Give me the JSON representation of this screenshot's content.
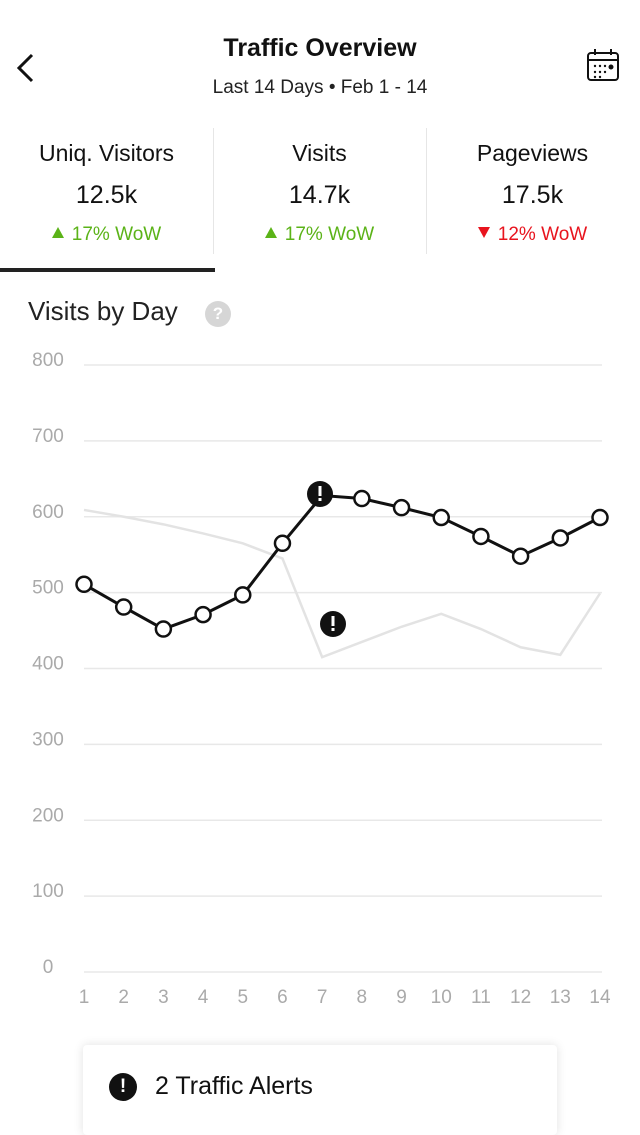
{
  "header": {
    "title": "Traffic Overview",
    "range": "Last 14 Days",
    "separator": "•",
    "dates": "Feb 1 - 14"
  },
  "metrics": [
    {
      "label": "Uniq. Visitors",
      "value": "12.5k",
      "change": "17% WoW",
      "direction": "up"
    },
    {
      "label": "Visits",
      "value": "14.7k",
      "change": "17% WoW",
      "direction": "up"
    },
    {
      "label": "Pageviews",
      "value": "17.5k",
      "change": "12% WoW",
      "direction": "down"
    }
  ],
  "section_title": "Visits by Day",
  "help_icon": "?",
  "chart_data": {
    "type": "line",
    "x": [
      1,
      2,
      3,
      4,
      5,
      6,
      7,
      8,
      9,
      10,
      11,
      12,
      13,
      14
    ],
    "xlim": [
      1,
      14
    ],
    "xticks": [
      1,
      2,
      3,
      4,
      5,
      6,
      7,
      8,
      9,
      10,
      11,
      12,
      13,
      14
    ],
    "ylim": [
      0,
      800
    ],
    "yticks": [
      0,
      100,
      200,
      300,
      400,
      500,
      600,
      700,
      800
    ],
    "grid": true,
    "series": [
      {
        "color": "#e3e3e3",
        "markers": false,
        "values": [
          609,
          600,
          590,
          578,
          565,
          545,
          415,
          435,
          455,
          472,
          452,
          428,
          418,
          499
        ]
      },
      {
        "color": "#111111",
        "markers": true,
        "values": [
          511,
          481,
          452,
          471,
          497,
          565,
          628,
          624,
          612,
          599,
          574,
          548,
          572,
          599
        ]
      }
    ]
  },
  "alerts": {
    "label": "2 Traffic Alerts",
    "icon": "!"
  }
}
